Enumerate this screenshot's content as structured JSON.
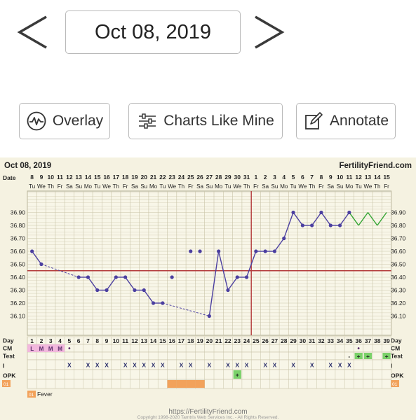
{
  "header": {
    "date": "Oct 08, 2019",
    "prev_icon": "chevron-left-icon",
    "next_icon": "chevron-right-icon"
  },
  "toolbar": {
    "overlay_label": "Overlay",
    "overlay_icon": "overlay-wave-icon",
    "charts_label": "Charts Like Mine",
    "charts_icon": "sliders-icon",
    "annotate_label": "Annotate",
    "annotate_icon": "edit-note-icon"
  },
  "chart_title": "Oct 08, 2019",
  "brand": "FertilityFriend.com",
  "row_labels": {
    "date": "Date",
    "day": "Day",
    "cm": "CM",
    "test": "Test",
    "intercourse": "I",
    "opk": "OPK",
    "fever_code": "01"
  },
  "legend": {
    "code": "01",
    "label": "Fever"
  },
  "footer": {
    "url": "https://FertilityFriend.com",
    "copyright": "Copyright 1998-2020 Tamtris Web Services Inc. - All Rights Reserved."
  },
  "colors": {
    "background": "#f5f2e1",
    "grid": "#c9c4a8",
    "cover_line": "#b33a3a",
    "temperature_line": "#4b3fa0",
    "projected_line": "#34a534",
    "cm_pink": "#f2b7dd",
    "test_green": "#7bd16a",
    "fever_orange": "#f2a25b"
  },
  "chart_data": {
    "type": "line",
    "title": "Oct 08, 2019",
    "dates": [
      "8",
      "9",
      "10",
      "11",
      "12",
      "13",
      "14",
      "15",
      "16",
      "17",
      "18",
      "19",
      "20",
      "21",
      "22",
      "23",
      "24",
      "25",
      "26",
      "27",
      "28",
      "29",
      "30",
      "31",
      "1",
      "2",
      "3",
      "4",
      "5",
      "6",
      "7",
      "8",
      "9",
      "10",
      "11",
      "12",
      "13",
      "14",
      "15"
    ],
    "weekdays": [
      "Tu",
      "We",
      "Th",
      "Fr",
      "Sa",
      "Su",
      "Mo",
      "Tu",
      "We",
      "Th",
      "Fr",
      "Sa",
      "Su",
      "Mo",
      "Tu",
      "We",
      "Th",
      "Fr",
      "Sa",
      "Su",
      "Mo",
      "Tu",
      "We",
      "Th",
      "Fr",
      "Sa",
      "Su",
      "Mo",
      "Tu",
      "We",
      "Th",
      "Fr",
      "Sa",
      "Su",
      "Mo",
      "Tu",
      "We",
      "Th",
      "Fr"
    ],
    "days": [
      1,
      2,
      3,
      4,
      5,
      6,
      7,
      8,
      9,
      10,
      11,
      12,
      13,
      14,
      15,
      16,
      17,
      18,
      19,
      20,
      21,
      22,
      23,
      24,
      25,
      26,
      27,
      28,
      29,
      30,
      31,
      32,
      33,
      34,
      35,
      36,
      37,
      38,
      39
    ],
    "temperature": [
      36.6,
      36.5,
      null,
      null,
      null,
      36.4,
      36.4,
      36.3,
      36.3,
      36.4,
      36.4,
      36.3,
      36.3,
      36.2,
      36.2,
      36.4,
      null,
      36.6,
      36.6,
      36.1,
      36.6,
      36.3,
      36.4,
      36.4,
      36.6,
      36.6,
      36.6,
      36.7,
      36.9,
      36.8,
      36.8,
      36.9,
      36.8,
      36.8,
      36.9,
      36.8,
      36.9,
      36.8,
      36.9
    ],
    "connected": [
      true,
      true,
      false,
      false,
      false,
      true,
      true,
      true,
      true,
      true,
      true,
      true,
      true,
      true,
      true,
      false,
      false,
      false,
      false,
      true,
      true,
      true,
      true,
      true,
      true,
      true,
      true,
      true,
      true,
      true,
      true,
      true,
      true,
      true,
      true,
      true,
      true,
      true,
      true
    ],
    "dashed_segments": [
      [
        2,
        6
      ],
      [
        15,
        20
      ]
    ],
    "projected_from_day": 35,
    "y_ticks": [
      36.1,
      36.2,
      36.3,
      36.4,
      36.5,
      36.6,
      36.7,
      36.8,
      36.9
    ],
    "ylim": [
      36.0,
      37.0
    ],
    "coverline": 36.45,
    "ovulation_day": 24,
    "cm": [
      "L",
      "M",
      "M",
      "M",
      "•",
      "",
      "",
      "",
      "",
      "",
      "",
      "",
      "",
      "",
      "",
      "",
      "",
      "",
      "",
      "",
      "",
      "",
      "",
      "",
      "",
      "",
      "",
      "",
      "",
      "",
      "",
      "",
      "",
      "",
      "",
      "•",
      "",
      "",
      ""
    ],
    "test": [
      "",
      "",
      "",
      "",
      "",
      "",
      "",
      "",
      "",
      "",
      "",
      "",
      "",
      "",
      "",
      "",
      "",
      "",
      "",
      "",
      "",
      "",
      "",
      "",
      "",
      "",
      "",
      "",
      "",
      "",
      "",
      "",
      "",
      "",
      "-",
      "+",
      "+",
      "",
      "+"
    ],
    "intercourse": [
      "",
      "",
      "",
      "",
      "X",
      "",
      "X",
      "X",
      "X",
      "",
      "X",
      "X",
      "X",
      "X",
      "X",
      "",
      "X",
      "X",
      "",
      "X",
      "",
      "X",
      "X",
      "X",
      "",
      "X",
      "X",
      "",
      "X",
      "",
      "X",
      "",
      "X",
      "X",
      "X",
      "",
      "",
      "",
      ""
    ],
    "opk": [
      "",
      "",
      "",
      "",
      "",
      "",
      "",
      "",
      "",
      "",
      "",
      "",
      "",
      "",
      "",
      "",
      "",
      "",
      "",
      "",
      "",
      "",
      "+",
      "",
      "",
      "",
      "",
      "",
      "",
      "",
      "",
      "",
      "",
      "",
      "",
      "",
      "",
      "",
      ""
    ],
    "fever_days": [
      16,
      17,
      18,
      19
    ]
  }
}
